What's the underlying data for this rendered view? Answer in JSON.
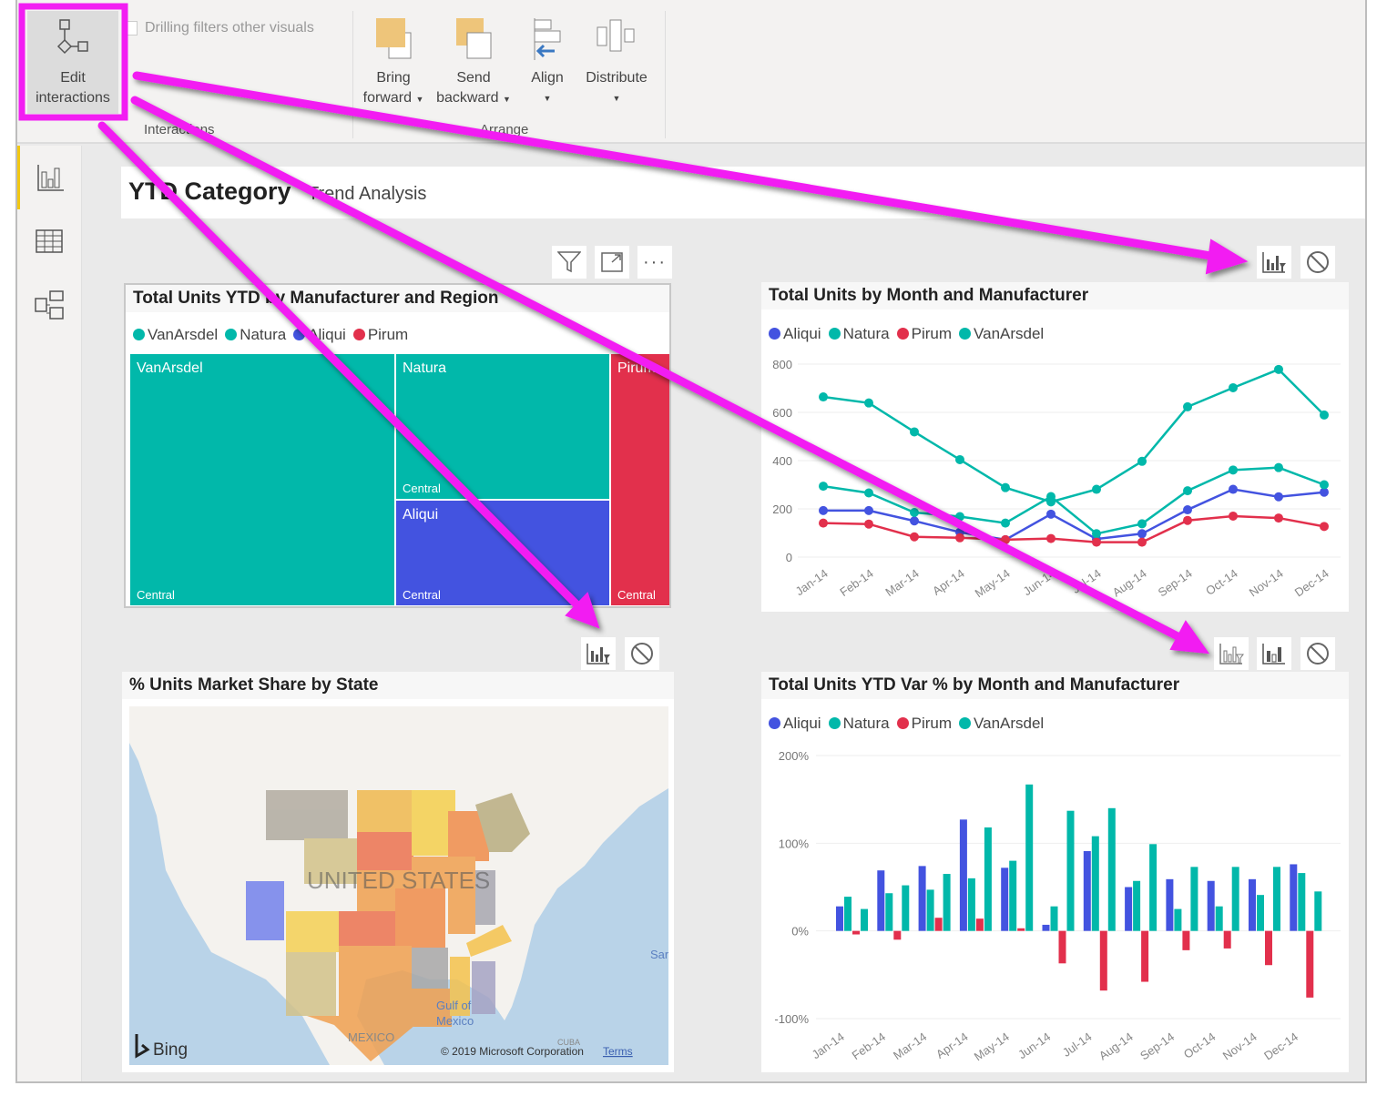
{
  "ribbon": {
    "edit_interactions": "Edit interactions",
    "edit_line1": "Edit",
    "edit_line2": "interactions",
    "drilling_filters": "Drilling filters other visuals",
    "bring_forward": [
      "Bring",
      "forward"
    ],
    "send_backward": [
      "Send",
      "backward"
    ],
    "align": "Align",
    "distribute": "Distribute",
    "group_interactions": "Interactions",
    "group_arrange": "Arrange"
  },
  "nav": {
    "items": [
      "report-view",
      "data-view",
      "model-view"
    ]
  },
  "page": {
    "title_bold": "YTD Category",
    "title_rest": "Trend Analysis"
  },
  "colors": {
    "aliqui": "#4353e0",
    "natura": "#01b8aa",
    "pirum": "#e2304c",
    "vanarsdel": "#01b8aa",
    "highlight": "#f21df2"
  },
  "treemap": {
    "title": "Total Units YTD by Manufacturer and Region",
    "legend": [
      "VanArsdel",
      "Natura",
      "Aliqui",
      "Pirum"
    ],
    "tiles": [
      {
        "name": "VanArsdel",
        "region": "Central"
      },
      {
        "name": "Natura",
        "region": "Central"
      },
      {
        "name": "Aliqui",
        "region": "Central"
      },
      {
        "name": "Pirum",
        "region": "Central"
      }
    ]
  },
  "map": {
    "title": "% Units Market Share by State",
    "country_label": "UNITED STATES",
    "gulf_label": [
      "Gulf of",
      "Mexico"
    ],
    "mexico_label": "MEXICO",
    "cuba_label": "CUBA",
    "sar_label": "Sar",
    "bing": "Bing",
    "copyright": "© 2019 Microsoft Corporation",
    "terms": "Terms"
  },
  "chart_data": [
    {
      "type": "line",
      "title": "Total Units by Month and Manufacturer",
      "legend": [
        "Aliqui",
        "Natura",
        "Pirum",
        "VanArsdel"
      ],
      "categories": [
        "Jan-14",
        "Feb-14",
        "Mar-14",
        "Apr-14",
        "May-14",
        "Jun-14",
        "Jul-14",
        "Aug-14",
        "Sep-14",
        "Oct-14",
        "Nov-14",
        "Dec-14"
      ],
      "yticks": [
        "0",
        "200",
        "400",
        "600",
        "800"
      ],
      "ylim": [
        0,
        800
      ],
      "grid": true,
      "legend_placement": "top-left",
      "series": [
        {
          "name": "Aliqui",
          "values": [
            193,
            193,
            150,
            103,
            72,
            178,
            75,
            97,
            196,
            281,
            250,
            269
          ]
        },
        {
          "name": "Natura",
          "values": [
            294,
            266,
            185,
            168,
            141,
            251,
            97,
            138,
            275,
            361,
            371,
            300
          ]
        },
        {
          "name": "Pirum",
          "values": [
            141,
            137,
            84,
            80,
            72,
            77,
            62,
            62,
            152,
            170,
            162,
            127
          ]
        },
        {
          "name": "VanArsdel",
          "values": [
            664,
            639,
            519,
            404,
            288,
            229,
            281,
            397,
            623,
            702,
            778,
            589
          ]
        }
      ]
    },
    {
      "type": "bar",
      "title": "Total Units YTD Var % by Month and Manufacturer",
      "legend": [
        "Aliqui",
        "Natura",
        "Pirum",
        "VanArsdel"
      ],
      "categories": [
        "Jan-14",
        "Feb-14",
        "Mar-14",
        "Apr-14",
        "May-14",
        "Jun-14",
        "Jul-14",
        "Aug-14",
        "Sep-14",
        "Oct-14",
        "Nov-14",
        "Dec-14"
      ],
      "yticks": [
        "-100%",
        "0%",
        "100%",
        "200%"
      ],
      "ylim": [
        -100,
        200
      ],
      "grid": true,
      "legend_placement": "top-left",
      "series": [
        {
          "name": "Aliqui",
          "values": [
            28,
            69,
            74,
            127,
            72,
            7,
            91,
            50,
            59,
            57,
            59,
            76
          ]
        },
        {
          "name": "Natura",
          "values": [
            39,
            43,
            47,
            60,
            80,
            28,
            108,
            57,
            25,
            28,
            41,
            66
          ]
        },
        {
          "name": "Pirum",
          "values": [
            -4,
            -10,
            15,
            14,
            3,
            -37,
            -68,
            -58,
            -22,
            -20,
            -39,
            -76
          ]
        },
        {
          "name": "VanArsdel",
          "values": [
            25,
            52,
            65,
            118,
            167,
            137,
            140,
            99,
            73,
            73,
            73,
            45
          ]
        }
      ]
    }
  ]
}
